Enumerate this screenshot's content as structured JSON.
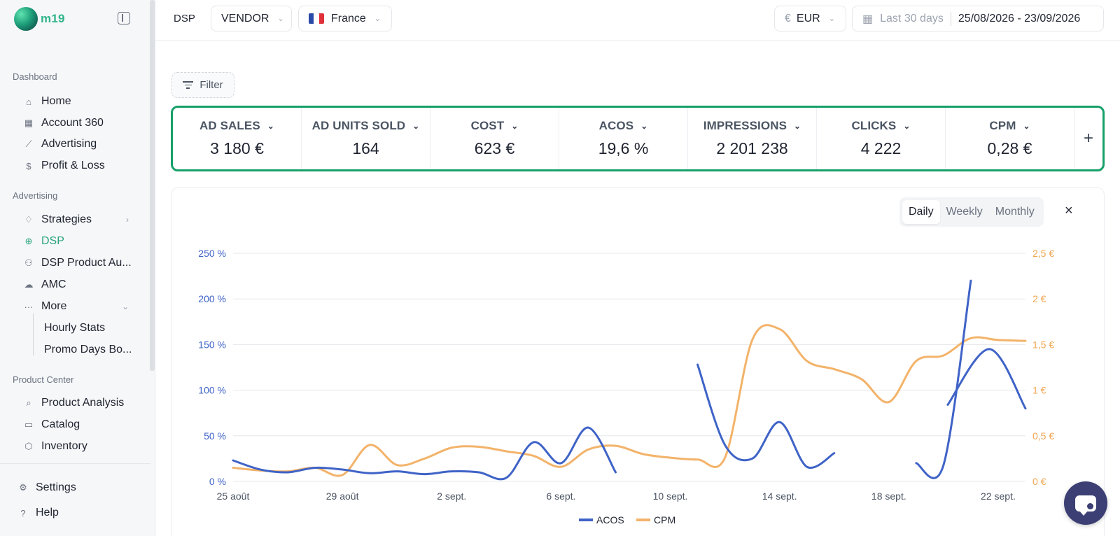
{
  "app": {
    "name": "m19"
  },
  "sidebar": {
    "sections": [
      {
        "label": "Dashboard"
      },
      {
        "label": "Advertising"
      },
      {
        "label": "Product Center"
      }
    ],
    "dashboard_items": [
      {
        "label": "Home",
        "icon": "home-icon"
      },
      {
        "label": "Account 360",
        "icon": "grid-icon"
      },
      {
        "label": "Advertising",
        "icon": "chart-line-icon"
      },
      {
        "label": "Profit & Loss",
        "icon": "dollar-icon"
      }
    ],
    "advertising_items": [
      {
        "label": "Strategies",
        "icon": "bulb-icon"
      },
      {
        "label": "DSP",
        "icon": "globe-icon",
        "active": true
      },
      {
        "label": "DSP Product Au...",
        "icon": "users-icon"
      },
      {
        "label": "AMC",
        "icon": "cloud-icon"
      },
      {
        "label": "More",
        "icon": "ellipsis-icon"
      }
    ],
    "more_subitems": [
      {
        "label": "Hourly Stats"
      },
      {
        "label": "Promo Days Bo..."
      }
    ],
    "product_items": [
      {
        "label": "Product Analysis",
        "icon": "search-icon"
      },
      {
        "label": "Catalog",
        "icon": "book-icon"
      },
      {
        "label": "Inventory",
        "icon": "box-icon"
      }
    ],
    "footer_items": [
      {
        "label": "Settings",
        "icon": "gear-icon"
      },
      {
        "label": "Help",
        "icon": "help-icon"
      }
    ]
  },
  "topbar": {
    "section": "DSP",
    "account_type": "VENDOR",
    "marketplace": "France",
    "currency_symbol": "€",
    "currency": "EUR",
    "date_preset": "Last 30 days",
    "date_range": "25/08/2026 - 23/09/2026"
  },
  "filter": {
    "label": "Filter"
  },
  "metrics": [
    {
      "name": "AD SALES",
      "value": "3 180 €"
    },
    {
      "name": "AD UNITS SOLD",
      "value": "164"
    },
    {
      "name": "COST",
      "value": "623 €"
    },
    {
      "name": "ACOS",
      "value": "19,6 %"
    },
    {
      "name": "IMPRESSIONS",
      "value": "2 201 238"
    },
    {
      "name": "CLICKS",
      "value": "4 222"
    },
    {
      "name": "CPM",
      "value": "0,28 €"
    }
  ],
  "metrics_add_label": "+",
  "granularity": {
    "options": [
      "Daily",
      "Weekly",
      "Monthly"
    ],
    "selected": "Daily"
  },
  "close_label": "×",
  "colors": {
    "acos": "#3f63c7",
    "cpm": "#f3b36a",
    "accent": "#16a06a"
  },
  "chart_data": {
    "type": "line",
    "x": [
      "25 août",
      "26 août",
      "27 août",
      "28 août",
      "29 août",
      "30 août",
      "31 août",
      "1 sept.",
      "2 sept.",
      "3 sept.",
      "4 sept.",
      "5 sept.",
      "6 sept.",
      "7 sept.",
      "8 sept.",
      "9 sept.",
      "10 sept.",
      "11 sept.",
      "12 sept.",
      "13 sept.",
      "14 sept.",
      "15 sept.",
      "16 sept.",
      "17 sept.",
      "18 sept.",
      "19 sept.",
      "20 sept.",
      "21 sept.",
      "22 sept.",
      "23 sept."
    ],
    "x_tick_labels": [
      "25 août",
      "29 août",
      "2 sept.",
      "6 sept.",
      "10 sept.",
      "14 sept.",
      "18 sept.",
      "22 sept."
    ],
    "series": [
      {
        "name": "ACOS",
        "axis": "left",
        "color": "#3f63c7",
        "values": [
          23,
          13,
          10,
          15,
          13,
          9,
          11,
          8,
          11,
          10,
          4,
          43,
          20,
          59,
          10,
          null,
          null,
          128,
          40,
          25,
          65,
          16,
          31,
          null,
          null,
          20,
          18,
          220,
          null,
          null
        ]
      },
      {
        "name": "CPM",
        "axis": "right",
        "color": "#f3b36a",
        "values": [
          0.15,
          0.12,
          0.11,
          0.15,
          0.07,
          0.4,
          0.18,
          0.25,
          0.37,
          0.38,
          0.33,
          0.28,
          0.16,
          0.35,
          0.39,
          0.3,
          0.26,
          0.24,
          0.26,
          1.55,
          1.67,
          1.32,
          1.23,
          1.12,
          0.87,
          1.32,
          1.38,
          1.57,
          1.55,
          1.54
        ]
      }
    ],
    "acos_tail": {
      "x": [
        "22 sept.",
        "22 sept. +",
        "23 sept."
      ],
      "values": [
        84,
        145,
        80
      ]
    },
    "y_left": {
      "min": 0,
      "max": 250,
      "ticks": [
        0,
        50,
        100,
        150,
        200,
        250
      ],
      "tick_labels": [
        "0 %",
        "50 %",
        "100 %",
        "150 %",
        "200 %",
        "250 %"
      ]
    },
    "y_right": {
      "min": 0,
      "max": 2.5,
      "ticks": [
        0,
        0.5,
        1,
        1.5,
        2,
        2.5
      ],
      "tick_labels": [
        "0 €",
        "0,5 €",
        "1 €",
        "1,5 €",
        "2 €",
        "2,5 €"
      ]
    },
    "legend": [
      "ACOS",
      "CPM"
    ],
    "legend_position": "bottom",
    "grid": true
  }
}
